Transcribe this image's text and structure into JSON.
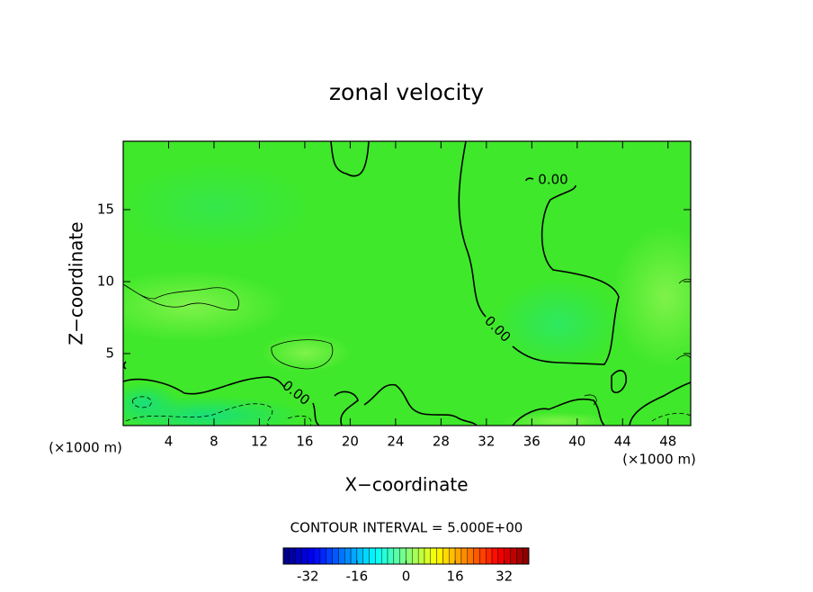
{
  "chart_data": {
    "type": "contour",
    "title": "zonal velocity",
    "x_label": "X−coordinate",
    "y_label": "Z−coordinate",
    "x_unit": "(×1000 m)",
    "y_unit": "(×1000 m)",
    "xlim": [
      0,
      50
    ],
    "ylim": [
      0,
      19.75
    ],
    "xticks": [
      4,
      8,
      12,
      16,
      20,
      24,
      28,
      32,
      36,
      40,
      44,
      48
    ],
    "yticks": [
      5,
      10,
      15
    ],
    "contours": [
      {
        "level": 0,
        "label": "0.00"
      },
      {
        "level": 5
      },
      {
        "level": -5
      }
    ],
    "contour_interval_label": "CONTOUR INTERVAL = 5.000E+00",
    "clim": [
      -40,
      40
    ],
    "cticks": [
      -32,
      -16,
      0,
      16,
      32
    ]
  }
}
